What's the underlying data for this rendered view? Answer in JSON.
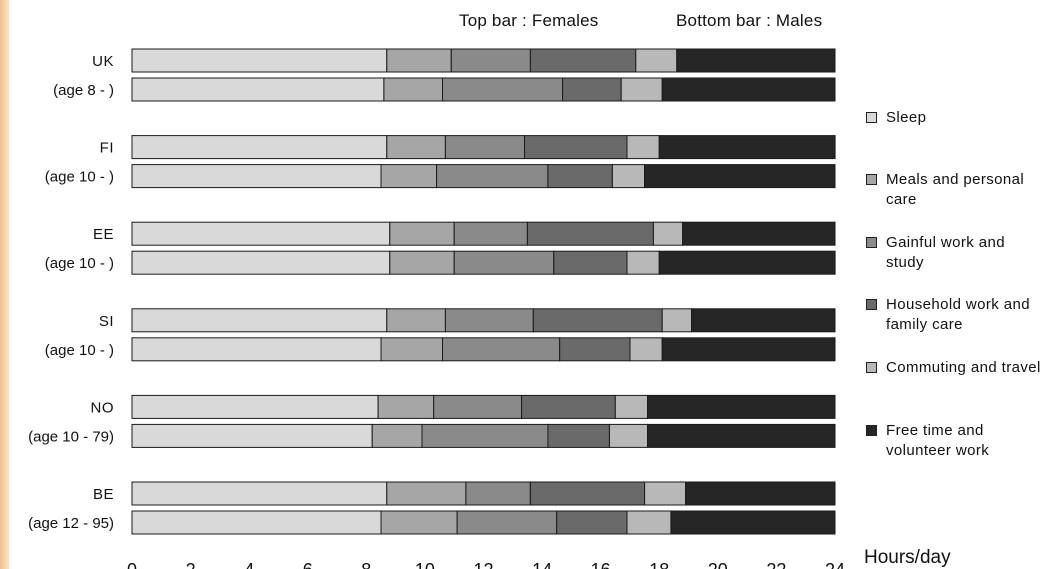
{
  "header": {
    "note_top": "Top bar : Females",
    "note_bottom": "Bottom bar : Males"
  },
  "chart_data": {
    "type": "bar",
    "orientation": "horizontal",
    "stacked": true,
    "xlabel": "Hours/day",
    "xlim": [
      0,
      24
    ],
    "xticks": [
      0,
      2,
      4,
      6,
      8,
      10,
      12,
      14,
      16,
      18,
      20,
      22,
      24
    ],
    "grid": false,
    "legend_position": "right",
    "groups": [
      {
        "country": "UK",
        "age_label": "(age 8 - )"
      },
      {
        "country": "FI",
        "age_label": "(age 10 - )"
      },
      {
        "country": "EE",
        "age_label": "(age 10 - )"
      },
      {
        "country": "SI",
        "age_label": "(age 10 - )"
      },
      {
        "country": "NO",
        "age_label": "(age 10 - 79)"
      },
      {
        "country": "BE",
        "age_label": "(age 12 - 95)"
      }
    ],
    "series": [
      {
        "name": "Sleep",
        "color": "#d9d9d9",
        "values_females": [
          8.7,
          8.7,
          8.8,
          8.7,
          8.4,
          8.7
        ],
        "values_males": [
          8.6,
          8.5,
          8.8,
          8.5,
          8.2,
          8.5
        ]
      },
      {
        "name": "Meals and personal care",
        "color": "#a6a6a6",
        "values_females": [
          2.2,
          2.0,
          2.2,
          2.0,
          1.9,
          2.7
        ],
        "values_males": [
          2.0,
          1.9,
          2.2,
          2.1,
          1.7,
          2.6
        ]
      },
      {
        "name": "Gainful work and study",
        "color": "#8a8a8a",
        "values_females": [
          2.7,
          2.7,
          2.5,
          3.0,
          3.0,
          2.2
        ],
        "values_males": [
          4.1,
          3.8,
          3.4,
          4.0,
          4.3,
          3.4
        ]
      },
      {
        "name": "Household work and family care",
        "color": "#6a6a6a",
        "values_females": [
          3.6,
          3.5,
          4.3,
          4.4,
          3.2,
          3.9
        ],
        "values_males": [
          2.0,
          2.2,
          2.5,
          2.4,
          2.1,
          2.4
        ]
      },
      {
        "name": "Commuting and travel",
        "color": "#b8b8b8",
        "values_females": [
          1.4,
          1.1,
          1.0,
          1.0,
          1.1,
          1.4
        ],
        "values_males": [
          1.4,
          1.1,
          1.1,
          1.1,
          1.3,
          1.5
        ]
      },
      {
        "name": "Free time and volunteer work",
        "color": "#262626",
        "values_females": [
          5.4,
          6.0,
          5.2,
          4.9,
          6.4,
          5.1
        ],
        "values_males": [
          5.9,
          6.5,
          6.0,
          5.9,
          6.4,
          5.6
        ]
      }
    ]
  }
}
